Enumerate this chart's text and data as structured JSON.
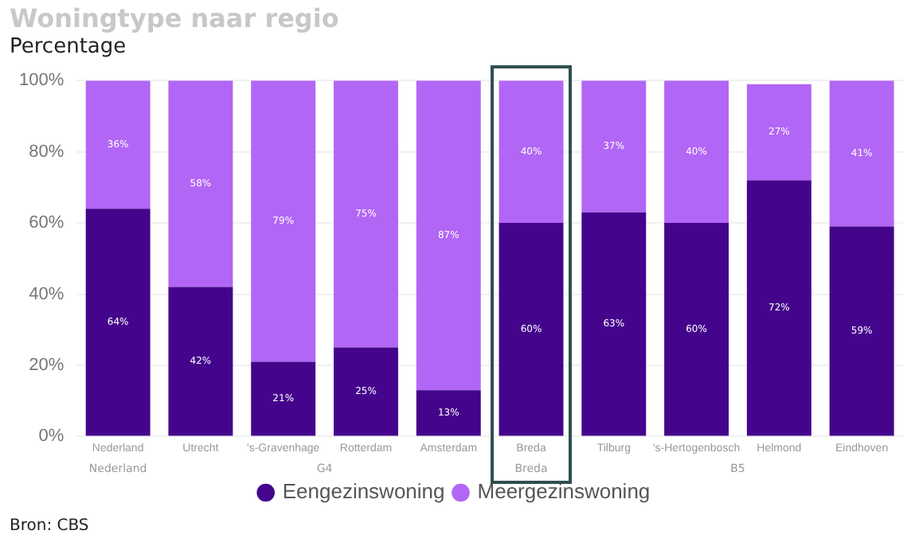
{
  "chart_data": {
    "type": "bar",
    "title": "Woningtype naar regio",
    "ylabel": "Percentage",
    "stacked": true,
    "categories": [
      "Nederland",
      "Utrecht",
      "'s-Gravenhage",
      "Rotterdam",
      "Amsterdam",
      "Breda",
      "Tilburg",
      "'s-Hertogenbosch",
      "Helmond",
      "Eindhoven"
    ],
    "series": [
      {
        "name": "Eengezinswoning",
        "color": "#44058c",
        "values": [
          64,
          42,
          21,
          25,
          13,
          60,
          63,
          60,
          72,
          59
        ],
        "value_labels": [
          "64%",
          "42%",
          "21%",
          "25%",
          "13%",
          "60%",
          "63%",
          "60%",
          "72%",
          "59%"
        ]
      },
      {
        "name": "Meergezinswoning",
        "color": "#b266f5",
        "values": [
          36,
          58,
          79,
          75,
          87,
          40,
          37,
          40,
          27,
          41
        ],
        "value_labels": [
          "36%",
          "58%",
          "79%",
          "75%",
          "87%",
          "40%",
          "37%",
          "40%",
          "27%",
          "41%"
        ]
      }
    ],
    "ylim": [
      0,
      100
    ],
    "yticks": [
      {
        "value": 0,
        "label": "0%"
      },
      {
        "value": 20,
        "label": "20%"
      },
      {
        "value": 40,
        "label": "40%"
      },
      {
        "value": 60,
        "label": "60%"
      },
      {
        "value": 80,
        "label": "80%"
      },
      {
        "value": 100,
        "label": "100%"
      }
    ],
    "grid": "y",
    "legend": "bottom",
    "annotations": [
      "Nederland",
      "G4",
      "Breda",
      "B5",
      "Bron: CBS"
    ]
  }
}
